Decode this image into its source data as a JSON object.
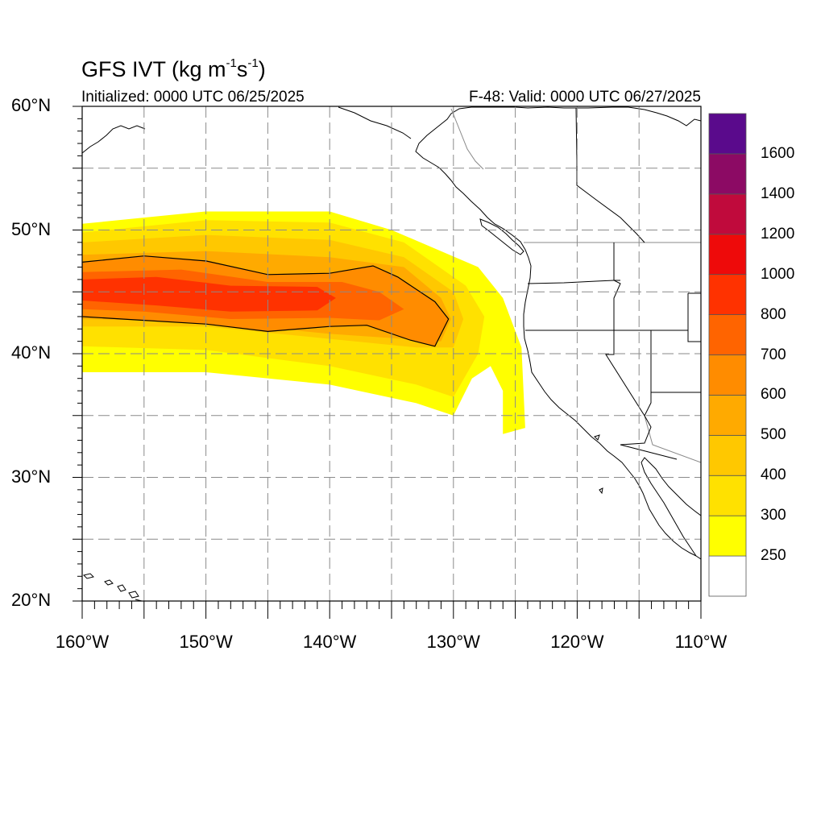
{
  "title": {
    "prefix": "GFS IVT (kg m",
    "exp1": "-1",
    "mid": "s",
    "exp2": "-1",
    "suffix": ")"
  },
  "subtitle_left": "Initialized: 0000 UTC 06/25/2025",
  "subtitle_right": "F-48: Valid: 0000 UTC 06/27/2025",
  "map": {
    "projection": "cylindrical equidistant",
    "lon_range": [
      -160,
      -110
    ],
    "lat_range": [
      20,
      60
    ],
    "grid_lines": "dashed gray, every 5 degrees",
    "lat_labels": [
      "60°N",
      "50°N",
      "40°N",
      "30°N",
      "20°N"
    ],
    "lon_labels": [
      "160°W",
      "150°W",
      "140°W",
      "130°W",
      "120°W",
      "110°W"
    ],
    "contour": {
      "level": 600,
      "color": "#000000"
    }
  },
  "colorbar": {
    "labels": [
      "1600",
      "1400",
      "1200",
      "1000",
      "800",
      "700",
      "600",
      "500",
      "400",
      "300",
      "250"
    ],
    "bins": [
      {
        "lower": null,
        "upper": 250,
        "color": "#ffffff"
      },
      {
        "lower": 250,
        "upper": 300,
        "color": "#ffff00"
      },
      {
        "lower": 300,
        "upper": 400,
        "color": "#ffe100"
      },
      {
        "lower": 400,
        "upper": 500,
        "color": "#ffc800"
      },
      {
        "lower": 500,
        "upper": 600,
        "color": "#ffaa00"
      },
      {
        "lower": 600,
        "upper": 700,
        "color": "#ff8c00"
      },
      {
        "lower": 700,
        "upper": 800,
        "color": "#ff6400"
      },
      {
        "lower": 800,
        "upper": 1000,
        "color": "#ff3200"
      },
      {
        "lower": 1000,
        "upper": 1200,
        "color": "#ee0a0a"
      },
      {
        "lower": 1200,
        "upper": 1400,
        "color": "#c00a3c"
      },
      {
        "lower": 1400,
        "upper": 1600,
        "color": "#8c0a64"
      },
      {
        "lower": 1600,
        "upper": null,
        "color": "#5a0a8c"
      }
    ]
  },
  "ivt_field": {
    "units": "kg m-1 s-1",
    "description_of_bands": [
      {
        "level": 250,
        "region": [
          [
            -160,
            50.5
          ],
          [
            -150,
            51.5
          ],
          [
            -140,
            51.5
          ],
          [
            -135,
            50
          ],
          [
            -128,
            47
          ],
          [
            -126,
            44.5
          ],
          [
            -124.5,
            40.5
          ],
          [
            -124.2,
            34
          ],
          [
            -126,
            33.5
          ],
          [
            -126,
            37
          ],
          [
            -127,
            39
          ],
          [
            -128.5,
            38
          ],
          [
            -130,
            35
          ],
          [
            -133,
            36
          ],
          [
            -140,
            37.5
          ],
          [
            -150,
            38.5
          ],
          [
            -155,
            38.5
          ],
          [
            -160,
            38.5
          ]
        ]
      },
      {
        "level": 300,
        "region": [
          [
            -160,
            49.8
          ],
          [
            -150,
            50.8
          ],
          [
            -140,
            50.6
          ],
          [
            -134,
            49
          ],
          [
            -129,
            45.5
          ],
          [
            -127.5,
            43
          ],
          [
            -128,
            40
          ],
          [
            -130,
            36.5
          ],
          [
            -133,
            37.5
          ],
          [
            -140,
            39
          ],
          [
            -150,
            40.3
          ],
          [
            -160,
            40.6
          ]
        ]
      },
      {
        "level": 400,
        "region": [
          [
            -160,
            49
          ],
          [
            -150,
            49.6
          ],
          [
            -140,
            49.2
          ],
          [
            -134,
            47.8
          ],
          [
            -130,
            45
          ],
          [
            -129.2,
            42.8
          ],
          [
            -130,
            40.5
          ],
          [
            -133,
            40.5
          ],
          [
            -140,
            41.2
          ],
          [
            -150,
            42.2
          ],
          [
            -160,
            42.2
          ]
        ]
      },
      {
        "level": 500,
        "region": [
          [
            -160,
            48
          ],
          [
            -150,
            48.3
          ],
          [
            -140,
            47.8
          ],
          [
            -134,
            47
          ],
          [
            -131,
            44.5
          ],
          [
            -130.2,
            42.8
          ],
          [
            -131,
            41
          ],
          [
            -134,
            41.2
          ],
          [
            -140,
            41.6
          ],
          [
            -150,
            42.6
          ],
          [
            -160,
            42.8
          ]
        ]
      },
      {
        "level": 600,
        "region": [
          [
            -160,
            47.4
          ],
          [
            -155,
            47.9
          ],
          [
            -150,
            47.5
          ],
          [
            -145,
            46.4
          ],
          [
            -140,
            46.5
          ],
          [
            -136.5,
            47.1
          ],
          [
            -134.5,
            46.2
          ],
          [
            -131.5,
            44.2
          ],
          [
            -130.4,
            42.8
          ],
          [
            -131.5,
            40.6
          ],
          [
            -133.5,
            41.1
          ],
          [
            -137,
            42.3
          ],
          [
            -140,
            42.2
          ],
          [
            -145,
            41.8
          ],
          [
            -150,
            42.4
          ],
          [
            -155,
            42.7
          ],
          [
            -160,
            43
          ]
        ]
      },
      {
        "level": 700,
        "region": [
          [
            -160,
            46.6
          ],
          [
            -152,
            46.8
          ],
          [
            -145,
            45.8
          ],
          [
            -139,
            45.8
          ],
          [
            -136,
            45
          ],
          [
            -134,
            43.6
          ],
          [
            -136,
            42.7
          ],
          [
            -140,
            42.9
          ],
          [
            -148,
            42.8
          ],
          [
            -155,
            43.4
          ],
          [
            -160,
            43.6
          ]
        ]
      },
      {
        "level": 800,
        "region": [
          [
            -160,
            46
          ],
          [
            -154,
            46.2
          ],
          [
            -148,
            45.5
          ],
          [
            -141,
            45.4
          ],
          [
            -139.5,
            44.5
          ],
          [
            -141,
            43.5
          ],
          [
            -148,
            43.4
          ],
          [
            -154,
            43.9
          ],
          [
            -160,
            44.3
          ]
        ]
      }
    ]
  }
}
